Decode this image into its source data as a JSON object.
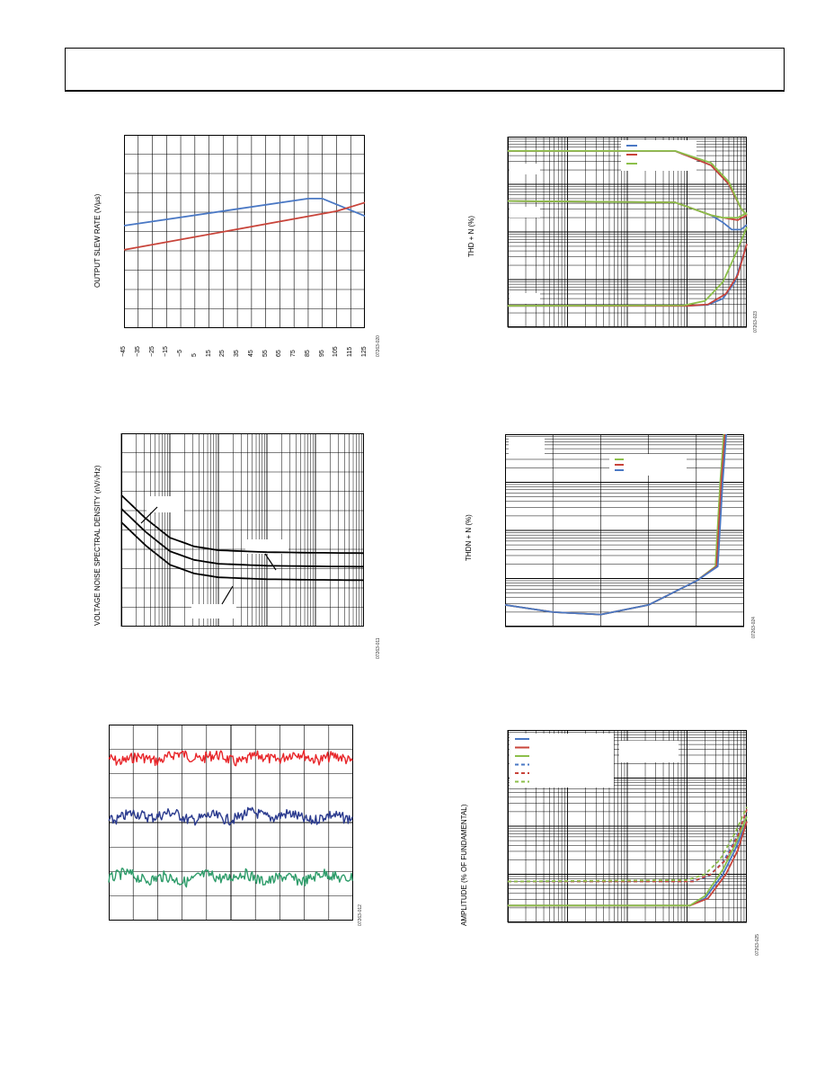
{
  "colors": {
    "blue": "#4a78c4",
    "red": "#c8443a",
    "green": "#8cbf4a",
    "black": "#000000",
    "scope_red": "#e8262a",
    "scope_blue": "#2a3a8e",
    "scope_green": "#2e9c6a"
  },
  "header": {
    "text": ""
  },
  "fig1": {
    "ylabel": "OUTPUT SLEW RATE (V/µs)",
    "code": "07263-020",
    "chart_data": {
      "type": "line",
      "x": [
        -45,
        -35,
        -25,
        -15,
        -5,
        5,
        15,
        25,
        35,
        45,
        55,
        65,
        75,
        85,
        95,
        105,
        115,
        125
      ],
      "xticks": [
        "−45",
        "−35",
        "−25",
        "−15",
        "−5",
        "5",
        "15",
        "25",
        "35",
        "45",
        "55",
        "65",
        "75",
        "85",
        "95",
        "105",
        "115",
        "125"
      ],
      "xlim": [
        -45,
        125
      ],
      "ylim": [
        0,
        10
      ],
      "grid": true,
      "series": [
        {
          "color": "blue",
          "points": [
            [
              -45,
              5.3
            ],
            [
              85,
              6.7
            ],
            [
              95,
              6.7
            ],
            [
              125,
              5.8
            ]
          ]
        },
        {
          "color": "red",
          "points": [
            [
              -45,
              4.05
            ],
            [
              105,
              6.05
            ],
            [
              125,
              6.5
            ]
          ]
        }
      ]
    }
  },
  "fig2": {
    "ylabel": "THD + N (%)",
    "code": "07263-023",
    "chart_data": {
      "type": "line",
      "xscale": "log",
      "yscale": "log",
      "xdecades": 4,
      "ydecades": 4,
      "grid": true,
      "legend": "top-right",
      "series": [
        {
          "color": "blue",
          "points": [
            [
              0,
              3.7
            ],
            [
              2.8,
              3.7
            ],
            [
              3.4,
              3.4
            ],
            [
              3.7,
              3.0
            ],
            [
              3.9,
              2.5
            ],
            [
              4,
              2.35
            ]
          ]
        },
        {
          "color": "red",
          "points": [
            [
              0,
              3.7
            ],
            [
              2.8,
              3.7
            ],
            [
              3.4,
              3.4
            ],
            [
              3.7,
              3.0
            ],
            [
              3.9,
              2.5
            ],
            [
              4,
              2.35
            ]
          ]
        },
        {
          "color": "green",
          "points": [
            [
              0,
              3.7
            ],
            [
              2.8,
              3.7
            ],
            [
              3.4,
              3.45
            ],
            [
              3.7,
              3.05
            ],
            [
              3.9,
              2.5
            ],
            [
              4,
              2.35
            ]
          ]
        },
        {
          "color": "blue",
          "points": [
            [
              0,
              2.65
            ],
            [
              2.8,
              2.62
            ],
            [
              3.4,
              2.35
            ],
            [
              3.6,
              2.2
            ],
            [
              3.75,
              2.05
            ],
            [
              3.9,
              2.05
            ],
            [
              4,
              2.15
            ]
          ]
        },
        {
          "color": "red",
          "points": [
            [
              0,
              2.65
            ],
            [
              2.8,
              2.62
            ],
            [
              3.4,
              2.35
            ],
            [
              3.6,
              2.3
            ],
            [
              3.85,
              2.25
            ],
            [
              4,
              2.35
            ]
          ]
        },
        {
          "color": "green",
          "points": [
            [
              0,
              2.65
            ],
            [
              2.8,
              2.62
            ],
            [
              3.4,
              2.35
            ],
            [
              3.6,
              2.3
            ],
            [
              3.85,
              2.3
            ],
            [
              4,
              2.4
            ]
          ]
        },
        {
          "color": "blue",
          "points": [
            [
              0,
              0.45
            ],
            [
              3.0,
              0.45
            ],
            [
              3.35,
              0.47
            ],
            [
              3.6,
              0.6
            ],
            [
              3.8,
              0.95
            ],
            [
              4,
              1.75
            ]
          ]
        },
        {
          "color": "red",
          "points": [
            [
              0,
              0.45
            ],
            [
              3.0,
              0.45
            ],
            [
              3.35,
              0.48
            ],
            [
              3.65,
              0.7
            ],
            [
              3.85,
              1.1
            ],
            [
              4,
              1.75
            ]
          ]
        },
        {
          "color": "green",
          "points": [
            [
              0,
              0.45
            ],
            [
              2.95,
              0.46
            ],
            [
              3.3,
              0.55
            ],
            [
              3.6,
              0.95
            ],
            [
              3.8,
              1.5
            ],
            [
              4,
              2.1
            ]
          ]
        }
      ]
    }
  },
  "fig3": {
    "ylabel": "VOLTAGE NOISE SPECTRAL DENSITY (nV/√Hz)",
    "code": "07263-011",
    "chart_data": {
      "type": "line",
      "xscale": "log",
      "yscale": "linear",
      "xdecades": 5,
      "ylim": [
        0,
        10
      ],
      "grid": true,
      "series": [
        {
          "color": "black",
          "points": [
            [
              0,
              6.8
            ],
            [
              0.5,
              5.6
            ],
            [
              1,
              4.6
            ],
            [
              1.5,
              4.15
            ],
            [
              2,
              3.95
            ],
            [
              3,
              3.85
            ],
            [
              4,
              3.82
            ],
            [
              5,
              3.8
            ]
          ]
        },
        {
          "color": "black",
          "points": [
            [
              0,
              6.1
            ],
            [
              0.5,
              4.9
            ],
            [
              1,
              3.9
            ],
            [
              1.5,
              3.45
            ],
            [
              2,
              3.25
            ],
            [
              3,
              3.15
            ],
            [
              4,
              3.12
            ],
            [
              5,
              3.1
            ]
          ]
        },
        {
          "color": "black",
          "points": [
            [
              0,
              5.4
            ],
            [
              0.5,
              4.2
            ],
            [
              1,
              3.2
            ],
            [
              1.5,
              2.75
            ],
            [
              2,
              2.55
            ],
            [
              3,
              2.45
            ],
            [
              4,
              2.42
            ],
            [
              5,
              2.4
            ]
          ]
        }
      ]
    }
  },
  "fig4": {
    "ylabel": "THDN + N (%)",
    "code": "07263-024",
    "chart_data": {
      "type": "line",
      "yscale": "log",
      "ydecades": 4,
      "grid": true,
      "legend": "top-right",
      "series": [
        {
          "color": "green",
          "points": [
            [
              0,
              0.45
            ],
            [
              0.2,
              0.3
            ],
            [
              0.4,
              0.25
            ],
            [
              0.6,
              0.45
            ],
            [
              0.8,
              0.95
            ],
            [
              0.88,
              1.25
            ],
            [
              0.9,
              3.0
            ],
            [
              0.915,
              4.0
            ]
          ]
        },
        {
          "color": "red",
          "points": [
            [
              0,
              0.45
            ],
            [
              0.2,
              0.3
            ],
            [
              0.4,
              0.25
            ],
            [
              0.6,
              0.45
            ],
            [
              0.8,
              0.95
            ],
            [
              0.885,
              1.25
            ],
            [
              0.905,
              3.0
            ],
            [
              0.92,
              4.0
            ]
          ]
        },
        {
          "color": "blue",
          "points": [
            [
              0,
              0.45
            ],
            [
              0.2,
              0.3
            ],
            [
              0.4,
              0.25
            ],
            [
              0.6,
              0.45
            ],
            [
              0.8,
              0.95
            ],
            [
              0.89,
              1.25
            ],
            [
              0.91,
              3.0
            ],
            [
              0.925,
              4.0
            ]
          ]
        }
      ]
    }
  },
  "fig5": {
    "code": "07263-012",
    "chart_data": {
      "type": "line",
      "divisions_x": 10,
      "divisions_y": 8,
      "series": [
        {
          "color": "scope_red",
          "level": 1.35
        },
        {
          "color": "scope_blue",
          "level": 3.75
        },
        {
          "color": "scope_green",
          "level": 6.25
        }
      ]
    }
  },
  "fig6": {
    "ylabel": "AMPLITUDE (% OF FUNDAMENTAL)",
    "code": "07263-025",
    "chart_data": {
      "type": "line",
      "xscale": "log",
      "yscale": "log",
      "xdecades": 4,
      "ydecades": 4,
      "grid": true,
      "legend": "top-left",
      "series": [
        {
          "color": "blue",
          "dash": false,
          "points": [
            [
              0,
              0.35
            ],
            [
              3.05,
              0.35
            ],
            [
              3.3,
              0.5
            ],
            [
              3.6,
              1.0
            ],
            [
              3.8,
              1.5
            ],
            [
              4,
              2.1
            ]
          ]
        },
        {
          "color": "red",
          "dash": false,
          "points": [
            [
              0,
              0.35
            ],
            [
              3.05,
              0.35
            ],
            [
              3.35,
              0.5
            ],
            [
              3.65,
              1.0
            ],
            [
              3.85,
              1.5
            ],
            [
              4,
              2.1
            ]
          ]
        },
        {
          "color": "green",
          "dash": false,
          "points": [
            [
              0,
              0.35
            ],
            [
              3.05,
              0.35
            ],
            [
              3.3,
              0.55
            ],
            [
              3.6,
              1.1
            ],
            [
              3.8,
              1.6
            ],
            [
              4,
              2.2
            ]
          ]
        },
        {
          "color": "blue",
          "dash": true,
          "points": [
            [
              0,
              0.85
            ],
            [
              3.05,
              0.85
            ],
            [
              3.35,
              0.95
            ],
            [
              3.6,
              1.25
            ],
            [
              3.8,
              1.7
            ],
            [
              4,
              2.3
            ]
          ]
        },
        {
          "color": "red",
          "dash": true,
          "points": [
            [
              0,
              0.85
            ],
            [
              3.1,
              0.85
            ],
            [
              3.4,
              1.0
            ],
            [
              3.65,
              1.3
            ],
            [
              3.85,
              1.8
            ],
            [
              4,
              2.35
            ]
          ]
        },
        {
          "color": "green",
          "dash": true,
          "points": [
            [
              0,
              0.85
            ],
            [
              3.0,
              0.88
            ],
            [
              3.3,
              1.0
            ],
            [
              3.55,
              1.3
            ],
            [
              3.8,
              1.85
            ],
            [
              4,
              2.4
            ]
          ]
        }
      ]
    }
  }
}
